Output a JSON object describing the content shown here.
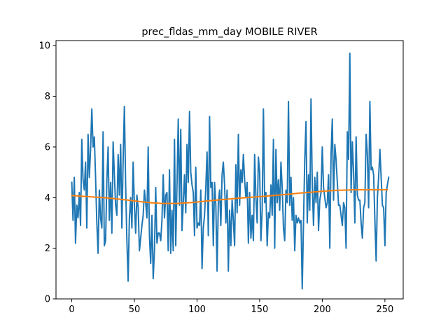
{
  "chart_data": {
    "type": "line",
    "title": "prec_fldas_mm_day MOBILE RIVER",
    "xlabel": "",
    "ylabel": "",
    "xlim": [
      -12.6,
      264.6
    ],
    "ylim": [
      0,
      10.2
    ],
    "x_ticks": [
      0,
      50,
      100,
      150,
      200,
      250
    ],
    "y_ticks": [
      0,
      2,
      4,
      6,
      8,
      10
    ],
    "grid": false,
    "legend": "none",
    "series": [
      {
        "color": "#1f77b4",
        "x_start": 0,
        "x_step": 1,
        "values": [
          4.6,
          3.1,
          4.8,
          2.2,
          3.7,
          3.2,
          4.2,
          2.9,
          6.3,
          4.7,
          4.3,
          5.4,
          2.8,
          6.5,
          4.8,
          5.9,
          7.5,
          6.0,
          6.4,
          4.8,
          3.0,
          1.8,
          4.3,
          3.2,
          2.8,
          6.6,
          2.1,
          2.3,
          4.7,
          6.0,
          3.1,
          4.6,
          2.6,
          6.2,
          4.9,
          3.7,
          3.3,
          5.7,
          4.1,
          6.1,
          2.8,
          5.5,
          7.6,
          4.5,
          2.3,
          0.7,
          3.2,
          4.0,
          2.8,
          5.4,
          3.7,
          2.6,
          4.1,
          3.6,
          1.9,
          2.4,
          2.9,
          3.3,
          4.3,
          3.8,
          3.2,
          6.0,
          2.5,
          1.4,
          3.3,
          0.8,
          1.9,
          4.4,
          2.2,
          2.6,
          2.6,
          2.3,
          3.1,
          4.9,
          3.2,
          4.1,
          4.2,
          1.9,
          5.1,
          1.8,
          3.5,
          1.9,
          6.3,
          2.1,
          4.5,
          7.1,
          3.7,
          6.7,
          2.7,
          3.8,
          4.9,
          3.4,
          6.1,
          4.6,
          7.4,
          5.0,
          4.5,
          4.2,
          2.5,
          5.2,
          2.8,
          3.0,
          2.9,
          4.3,
          1.2,
          2.8,
          3.3,
          4.4,
          5.8,
          2.5,
          7.2,
          4.4,
          4.6,
          2.1,
          4.6,
          3.7,
          1.1,
          3.8,
          4.3,
          2.9,
          4.9,
          5.4,
          4.5,
          3.0,
          4.3,
          1.1,
          3.5,
          2.1,
          3.9,
          3.1,
          2.1,
          5.3,
          3.4,
          6.5,
          3.7,
          5.1,
          4.6,
          5.7,
          4.7,
          4.0,
          4.6,
          2.2,
          4.2,
          2.4,
          3.3,
          2.3,
          5.7,
          4.0,
          3.0,
          5.6,
          5.0,
          2.3,
          3.5,
          7.5,
          3.8,
          4.2,
          2.1,
          3.4,
          3.2,
          4.5,
          3.3,
          6.3,
          2.0,
          5.9,
          3.8,
          4.7,
          3.5,
          5.4,
          4.4,
          2.8,
          2.3,
          4.3,
          3.8,
          7.8,
          3.7,
          4.8,
          3.1,
          4.0,
          1.9,
          3.3,
          3.0,
          3.2,
          3.0,
          3.1,
          0.4,
          3.0,
          5.5,
          7.0,
          3.0,
          4.9,
          3.5,
          7.9,
          4.5,
          2.9,
          4.8,
          3.8,
          5.0,
          2.7,
          3.9,
          4.2,
          6.0,
          4.4,
          4.0,
          3.6,
          3.8,
          4.9,
          2.0,
          5.7,
          7.1,
          3.9,
          6.1,
          5.5,
          4.6,
          3.7,
          3.7,
          3.3,
          2.9,
          3.8,
          3.6,
          2.0,
          6.6,
          5.5,
          9.7,
          4.2,
          6.2,
          5.0,
          3.0,
          6.4,
          4.1,
          3.9,
          3.9,
          3.0,
          2.4,
          3.6,
          3.8,
          6.5,
          5.7,
          3.6,
          7.8,
          5.1,
          5.2,
          4.9,
          3.1,
          1.5,
          4.0,
          4.8,
          5.9,
          4.8,
          3.7,
          3.6,
          2.1,
          4.2,
          4.5,
          4.8
        ]
      },
      {
        "color": "#ff7f0e",
        "x_start": 0,
        "x_step": 1,
        "values": [
          4.08,
          4.08,
          4.07,
          4.07,
          4.07,
          4.06,
          4.06,
          4.06,
          4.05,
          4.05,
          4.05,
          4.05,
          4.04,
          4.04,
          4.04,
          4.03,
          4.03,
          4.03,
          4.02,
          4.02,
          4.02,
          4.01,
          4.01,
          4.01,
          4.0,
          4.0,
          4.0,
          3.99,
          3.99,
          3.98,
          3.98,
          3.97,
          3.97,
          3.96,
          3.96,
          3.95,
          3.95,
          3.94,
          3.94,
          3.93,
          3.93,
          3.92,
          3.92,
          3.91,
          3.91,
          3.9,
          3.89,
          3.89,
          3.88,
          3.88,
          3.87,
          3.86,
          3.86,
          3.85,
          3.85,
          3.84,
          3.83,
          3.83,
          3.82,
          3.82,
          3.81,
          3.81,
          3.8,
          3.8,
          3.79,
          3.79,
          3.79,
          3.78,
          3.78,
          3.78,
          3.78,
          3.77,
          3.77,
          3.77,
          3.77,
          3.77,
          3.77,
          3.77,
          3.77,
          3.77,
          3.77,
          3.77,
          3.77,
          3.77,
          3.77,
          3.77,
          3.78,
          3.78,
          3.78,
          3.78,
          3.79,
          3.79,
          3.79,
          3.8,
          3.8,
          3.8,
          3.81,
          3.81,
          3.82,
          3.82,
          3.83,
          3.83,
          3.84,
          3.84,
          3.85,
          3.85,
          3.86,
          3.86,
          3.87,
          3.87,
          3.88,
          3.88,
          3.88,
          3.89,
          3.89,
          3.9,
          3.9,
          3.91,
          3.91,
          3.92,
          3.92,
          3.93,
          3.93,
          3.93,
          3.94,
          3.94,
          3.95,
          3.95,
          3.96,
          3.96,
          3.96,
          3.97,
          3.97,
          3.98,
          3.98,
          3.98,
          3.99,
          3.99,
          3.99,
          4.0,
          4.0,
          4.01,
          4.01,
          4.01,
          4.02,
          4.02,
          4.02,
          4.03,
          4.03,
          4.04,
          4.04,
          4.04,
          4.05,
          4.05,
          4.05,
          4.06,
          4.06,
          4.07,
          4.07,
          4.07,
          4.08,
          4.08,
          4.09,
          4.09,
          4.09,
          4.1,
          4.1,
          4.11,
          4.11,
          4.12,
          4.12,
          4.13,
          4.13,
          4.13,
          4.14,
          4.14,
          4.15,
          4.15,
          4.16,
          4.16,
          4.17,
          4.17,
          4.18,
          4.18,
          4.18,
          4.19,
          4.19,
          4.2,
          4.2,
          4.21,
          4.21,
          4.21,
          4.22,
          4.22,
          4.23,
          4.23,
          4.23,
          4.24,
          4.24,
          4.25,
          4.25,
          4.25,
          4.26,
          4.26,
          4.26,
          4.27,
          4.27,
          4.27,
          4.28,
          4.28,
          4.28,
          4.28,
          4.29,
          4.29,
          4.29,
          4.29,
          4.29,
          4.3,
          4.3,
          4.3,
          4.3,
          4.3,
          4.3,
          4.31,
          4.31,
          4.31,
          4.31,
          4.31,
          4.31,
          4.31,
          4.31,
          4.31,
          4.31,
          4.31,
          4.31,
          4.31,
          4.31,
          4.31,
          4.31,
          4.31,
          4.31,
          4.31,
          4.31,
          4.31,
          4.31,
          4.31,
          4.31,
          4.31,
          4.31,
          4.31,
          4.31,
          4.31,
          4.31
        ]
      }
    ]
  }
}
